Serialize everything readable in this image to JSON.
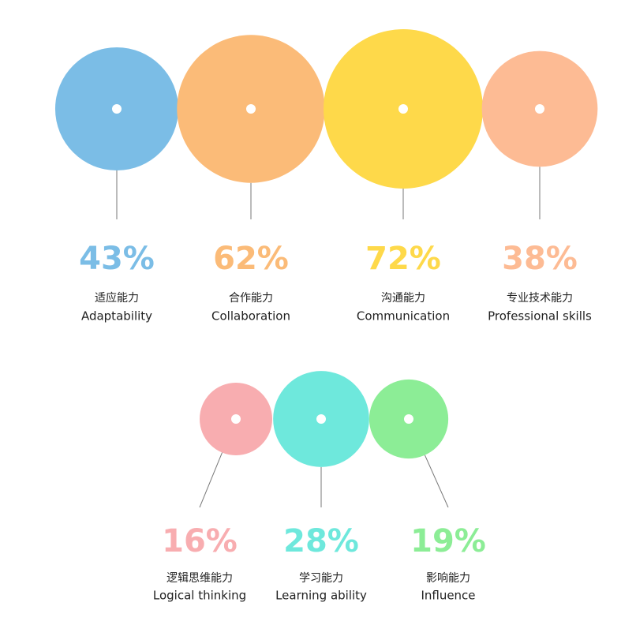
{
  "chart_data": [
    {
      "type": "bubble",
      "categories": [
        [
          "适应能力",
          "Adaptability"
        ],
        [
          "合作能力",
          "Collaboration"
        ],
        [
          "沟通能力",
          "Communication"
        ],
        [
          "专业技术能力",
          "Professional skills"
        ]
      ],
      "values": [
        43,
        62,
        72,
        38
      ],
      "value_labels": [
        "43%",
        "62%",
        "72%",
        "38%"
      ],
      "colors": [
        "#7bbde6",
        "#fbbb78",
        "#fed94a",
        "#fdbb94"
      ]
    },
    {
      "type": "bubble",
      "categories": [
        [
          "逻辑思维能力",
          "Logical thinking"
        ],
        [
          "学习能力",
          "Learning ability"
        ],
        [
          "影响能力",
          "Influence"
        ]
      ],
      "values": [
        16,
        28,
        19
      ],
      "value_labels": [
        "16%",
        "28%",
        "19%"
      ],
      "colors": [
        "#f8adb0",
        "#6ee8dc",
        "#8ced96"
      ]
    }
  ]
}
